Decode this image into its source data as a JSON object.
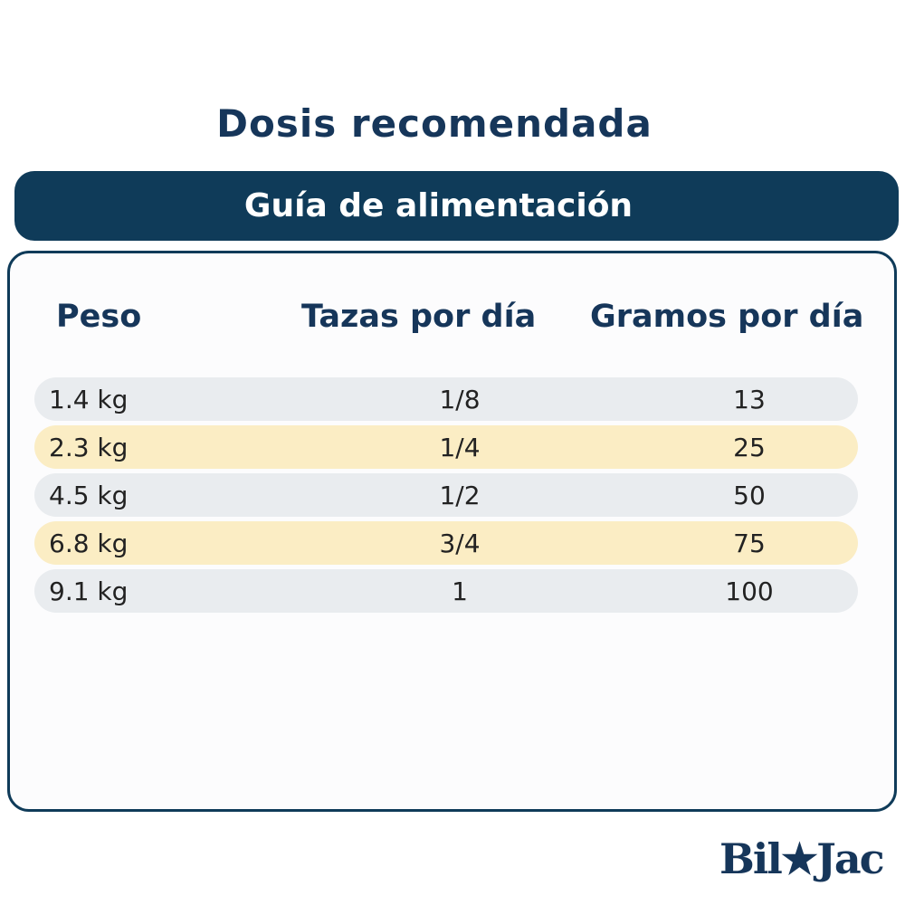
{
  "header": {
    "title": "Dosis recomendada",
    "subtitle": "Guía de alimentación"
  },
  "table": {
    "columns": [
      "Peso",
      "Tazas por día",
      "Gramos por día"
    ],
    "rows": [
      [
        "1.4 kg",
        "1/8",
        "13"
      ],
      [
        "2.3 kg",
        "1/4",
        "25"
      ],
      [
        "4.5 kg",
        "1/2",
        "50"
      ],
      [
        "6.8 kg",
        "3/4",
        "75"
      ],
      [
        "9.1 kg",
        "1",
        "100"
      ]
    ]
  },
  "footer": {
    "logo": "Bil★Jac"
  }
}
